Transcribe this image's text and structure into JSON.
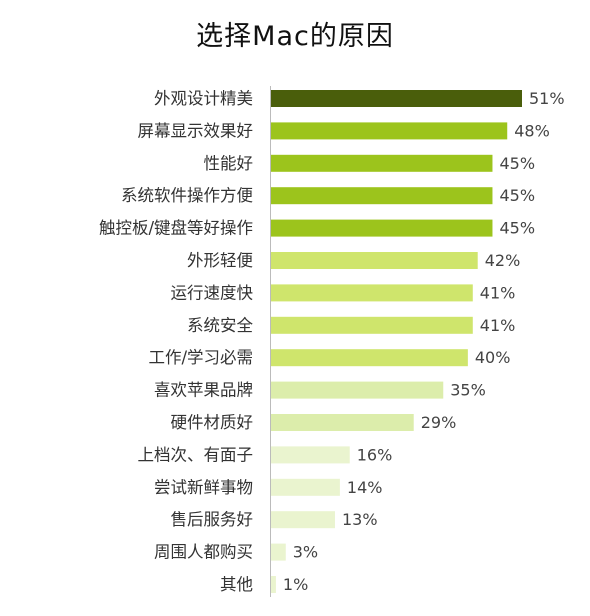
{
  "chart_data": {
    "type": "bar",
    "orientation": "horizontal",
    "title": "选择Mac的原因",
    "categories": [
      "外观设计精美",
      "屏幕显示效果好",
      "性能好",
      "系统软件操作方便",
      "触控板/键盘等好操作",
      "外形轻便",
      "运行速度快",
      "系统安全",
      "工作/学习必需",
      "喜欢苹果品牌",
      "硬件材质好",
      "上档次、有面子",
      "尝试新鲜事物",
      "售后服务好",
      "周围人都购买",
      "其他"
    ],
    "values": [
      51,
      48,
      45,
      45,
      45,
      42,
      41,
      41,
      40,
      35,
      29,
      16,
      14,
      13,
      3,
      1
    ],
    "value_labels": [
      "51%",
      "48%",
      "45%",
      "45%",
      "45%",
      "42%",
      "41%",
      "41%",
      "40%",
      "35%",
      "29%",
      "16%",
      "14%",
      "13%",
      "3%",
      "1%"
    ],
    "colors": [
      "#4a5e0b",
      "#9cc41c",
      "#9cc41c",
      "#9cc41c",
      "#9cc41c",
      "#cfe56c",
      "#cfe56c",
      "#cfe56c",
      "#cfe56c",
      "#dcedab",
      "#dcedab",
      "#eaf4cf",
      "#eaf4cf",
      "#eaf4cf",
      "#eaf4cf",
      "#eaf4cf"
    ],
    "axis_line_color": "#bbbbbb",
    "xlim": [
      0,
      51
    ],
    "grid": false,
    "legend": "none"
  }
}
